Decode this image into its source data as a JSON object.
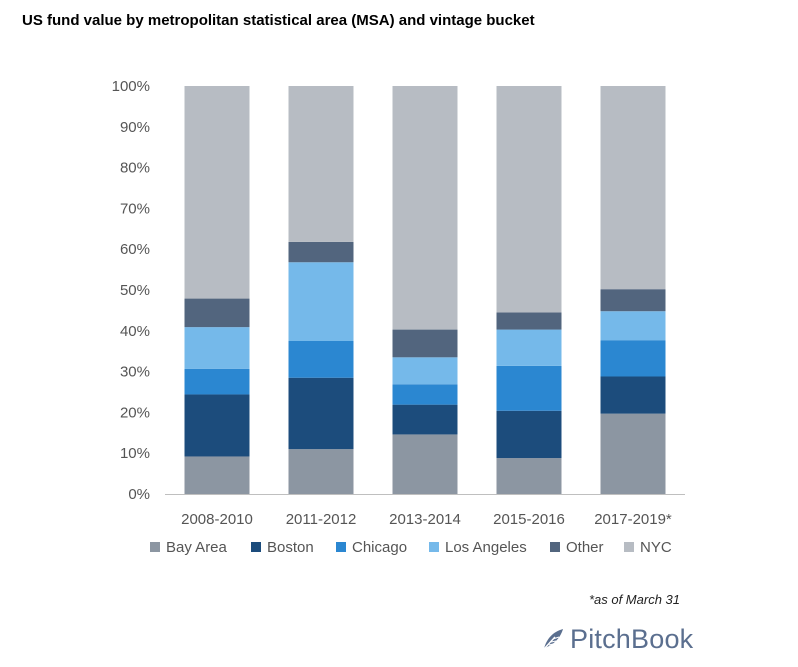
{
  "title": "US fund value by metropolitan statistical area (MSA) and vintage bucket",
  "footnote": "*as of March 31",
  "brand": "PitchBook",
  "colors": {
    "Bay Area": "#8c96a2",
    "Boston": "#1c4c7c",
    "Chicago": "#2b87d1",
    "Los Angeles": "#75b9ea",
    "Other": "#52657e",
    "NYC": "#b7bcc3",
    "axis_text": "#555555",
    "axis_line": "#bfbfbf",
    "brand_color": "#5b6f8f"
  },
  "chart_data": {
    "type": "bar",
    "stacked": true,
    "percent_stacked": true,
    "categories": [
      "2008-2010",
      "2011-2012",
      "2013-2014",
      "2015-2016",
      "2017-2019*"
    ],
    "series": [
      {
        "name": "Bay Area",
        "values": [
          9.2,
          11.0,
          14.6,
          8.8,
          19.7
        ]
      },
      {
        "name": "Boston",
        "values": [
          15.2,
          17.5,
          7.3,
          11.6,
          9.1
        ]
      },
      {
        "name": "Chicago",
        "values": [
          6.3,
          9.0,
          5.0,
          11.0,
          8.9
        ]
      },
      {
        "name": "Los Angeles",
        "values": [
          10.2,
          19.3,
          6.6,
          8.9,
          7.1
        ]
      },
      {
        "name": "Other",
        "values": [
          7.0,
          5.0,
          6.8,
          4.2,
          5.4
        ]
      },
      {
        "name": "NYC",
        "values": [
          52.1,
          38.2,
          59.7,
          55.5,
          49.8
        ]
      }
    ],
    "ylim": [
      0,
      100
    ],
    "yticks": [
      "0%",
      "10%",
      "20%",
      "30%",
      "40%",
      "50%",
      "60%",
      "70%",
      "80%",
      "90%",
      "100%"
    ],
    "legend_position": "bottom",
    "grid": false
  }
}
